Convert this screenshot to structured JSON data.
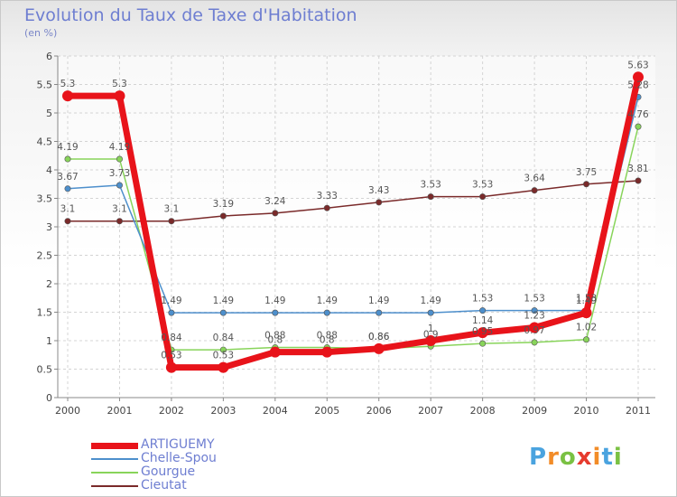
{
  "brand": {
    "letters": [
      "P",
      "r",
      "o",
      "x",
      "i",
      "t",
      "i"
    ],
    "colors": [
      "#4aa3df",
      "#f28c28",
      "#7ac143",
      "#e63b2e",
      "#f28c28",
      "#4aa3df",
      "#7ac143"
    ]
  },
  "chart_data": {
    "type": "line",
    "title": "Evolution du Taux de Taxe d'Habitation",
    "subtitle": "(en %)",
    "xlabel": "",
    "ylabel": "",
    "categories": [
      "2000",
      "2001",
      "2002",
      "2003",
      "2004",
      "2005",
      "2006",
      "2007",
      "2008",
      "2009",
      "2010",
      "2011"
    ],
    "yticks": [
      "0",
      "0.5",
      "1",
      "1.5",
      "2",
      "2.5",
      "3",
      "3.5",
      "4",
      "4.5",
      "5",
      "5.5",
      "6"
    ],
    "ylim": [
      0,
      6
    ],
    "grid": true,
    "legend_position": "bottom-left",
    "series": [
      {
        "name": "ARTIGUEMY",
        "color": "#e8131a",
        "values": [
          5.3,
          5.3,
          0.53,
          0.53,
          0.8,
          0.8,
          0.86,
          1.0,
          1.14,
          1.23,
          1.49,
          5.63
        ],
        "labels": [
          "5.3",
          "5.3",
          "0.53",
          "0.53",
          "0.8",
          "0.8",
          "0.86",
          "1",
          "1.14",
          "1.23",
          "1.49",
          "5.63"
        ]
      },
      {
        "name": "Chelle-Spou",
        "color": "#4d8fcc",
        "values": [
          3.67,
          3.73,
          1.49,
          1.49,
          1.49,
          1.49,
          1.49,
          1.49,
          1.53,
          1.53,
          1.53,
          5.28
        ],
        "labels": [
          "3.67",
          "3.73",
          "1.49",
          "1.49",
          "1.49",
          "1.49",
          "1.49",
          "1.49",
          "1.53",
          "1.53",
          "1.53",
          "5.28"
        ]
      },
      {
        "name": "Gourgue",
        "color": "#88d45a",
        "values": [
          4.19,
          4.19,
          0.84,
          0.84,
          0.88,
          0.88,
          0.86,
          0.9,
          0.95,
          0.97,
          1.02,
          4.76
        ],
        "labels": [
          "4.19",
          "4.19",
          "0.84",
          "0.84",
          "0.88",
          "0.88",
          "0.86",
          "0.9",
          "0.95",
          "0.97",
          "1.02",
          "4.76"
        ]
      },
      {
        "name": "Cieutat",
        "color": "#7a2a2a",
        "values": [
          3.1,
          3.1,
          3.1,
          3.19,
          3.24,
          3.33,
          3.43,
          3.53,
          3.53,
          3.64,
          3.75,
          3.81
        ],
        "labels": [
          "3.1",
          "3.1",
          "3.1",
          "3.19",
          "3.24",
          "3.33",
          "3.43",
          "3.53",
          "3.53",
          "3.64",
          "3.75",
          "3.81"
        ]
      }
    ]
  }
}
